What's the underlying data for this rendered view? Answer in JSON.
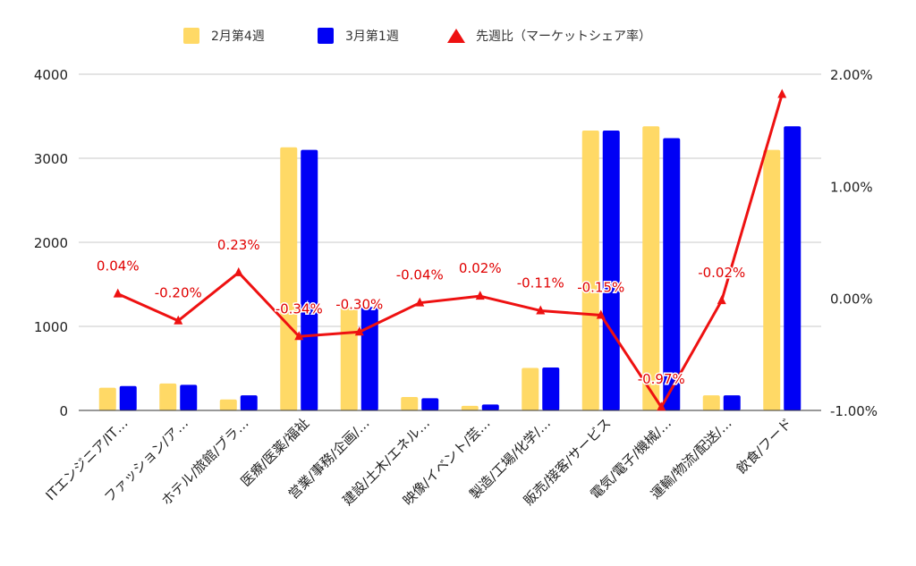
{
  "chart_data": {
    "type": "bar",
    "categories": [
      "ITエンジニア/IT…",
      "ファッション/ア…",
      "ホテル/旅館/ブラ…",
      "医療/医薬/福祉",
      "営業/事務/企画/…",
      "建設/土木/エネル…",
      "映像/イベント/芸…",
      "製造/工場/化学/…",
      "販売/接客/サービス",
      "電気/電子/機械/…",
      "運輸/物流/配送/…",
      "飲食/フード"
    ],
    "series": [
      {
        "name": "2月第4週",
        "type": "bar",
        "axis": "left",
        "color": "#ffd966",
        "values": [
          270,
          320,
          130,
          3130,
          1230,
          160,
          55,
          505,
          3330,
          3380,
          180,
          3100
        ]
      },
      {
        "name": "3月第1週",
        "type": "bar",
        "axis": "left",
        "color": "#0000f5",
        "values": [
          290,
          305,
          180,
          3100,
          1230,
          145,
          70,
          510,
          3330,
          3240,
          180,
          3380
        ]
      },
      {
        "name": "先週比（マーケットシェア率）",
        "type": "line",
        "axis": "right",
        "color": "#ee1111",
        "values": [
          0.04,
          -0.2,
          0.23,
          -0.34,
          -0.3,
          -0.04,
          0.02,
          -0.11,
          -0.15,
          -0.97,
          -0.02,
          1.82
        ],
        "labels": [
          "0.04%",
          "-0.20%",
          "0.23%",
          "-0.34%",
          "-0.30%",
          "-0.04%",
          "0.02%",
          "-0.11%",
          "-0.15%",
          "-0.97%",
          "-0.02%",
          ""
        ]
      }
    ],
    "y_left": {
      "ylim": [
        0,
        4000
      ],
      "ticks": [
        "0",
        "1000",
        "2000",
        "3000",
        "4000"
      ]
    },
    "y_right": {
      "ylim": [
        -1.0,
        2.0
      ],
      "ticks": [
        "-1.00%",
        "0.00%",
        "1.00%",
        "2.00%"
      ]
    },
    "grid": true,
    "legend_position": "top"
  }
}
